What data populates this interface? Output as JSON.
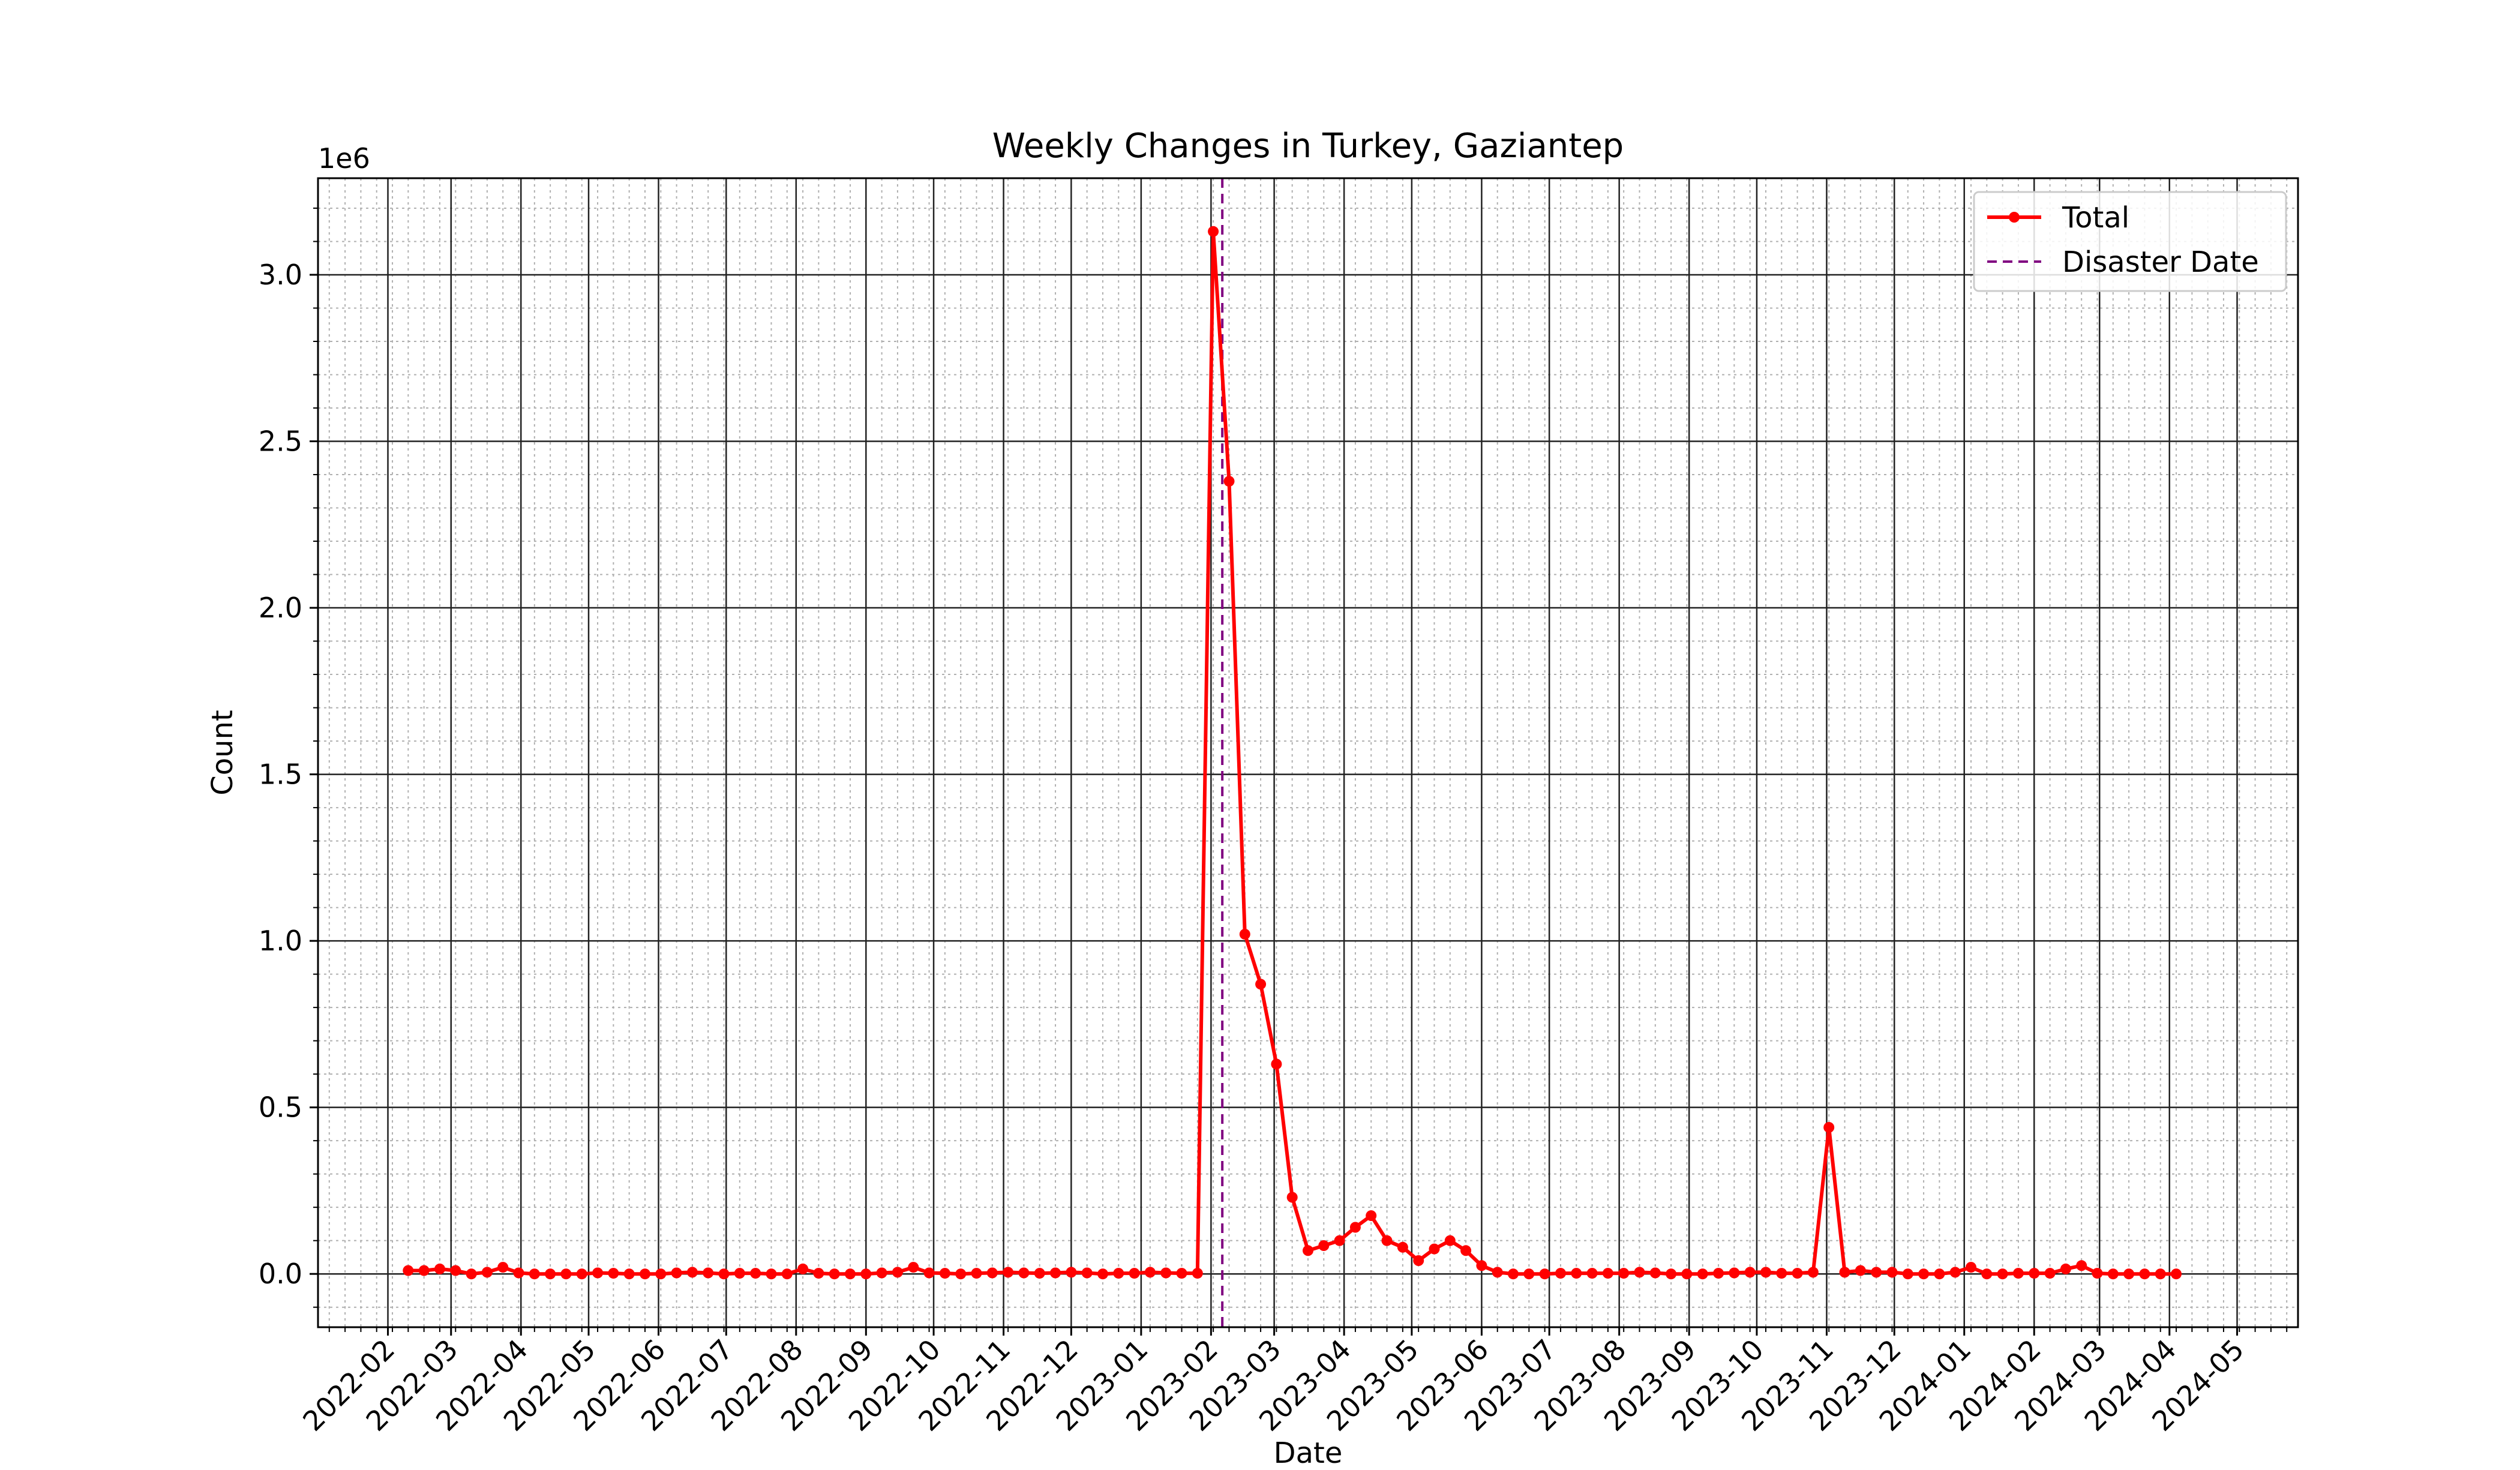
{
  "chart_data": {
    "type": "line",
    "title": "Weekly Changes in Turkey, Gaziantep",
    "xlabel": "Date",
    "ylabel": "Count",
    "y_exponent_label": "1e6",
    "xlim": [
      "2022-01-01",
      "2024-05-28"
    ],
    "ylim": [
      -0.16,
      3.29
    ],
    "y_scale_factor": 1000000,
    "grid": {
      "major": true,
      "minor": true
    },
    "legend_position": "top-right",
    "x_ticks": [
      "2022-02",
      "2022-03",
      "2022-04",
      "2022-05",
      "2022-06",
      "2022-07",
      "2022-08",
      "2022-09",
      "2022-10",
      "2022-11",
      "2022-12",
      "2023-01",
      "2023-02",
      "2023-03",
      "2023-04",
      "2023-05",
      "2023-06",
      "2023-07",
      "2023-08",
      "2023-09",
      "2023-10",
      "2023-11",
      "2023-12",
      "2024-01",
      "2024-02",
      "2024-03",
      "2024-04",
      "2024-05"
    ],
    "y_ticks": [
      0.0,
      0.5,
      1.0,
      1.5,
      2.0,
      2.5,
      3.0
    ],
    "y_tick_labels": [
      "0.0",
      "0.5",
      "1.0",
      "1.5",
      "2.0",
      "2.5",
      "3.0"
    ],
    "disaster_date": "2023-02-06",
    "series": [
      {
        "name": "Total",
        "color": "#ff0000",
        "start_date": "2022-02-10",
        "interval_days": 7,
        "values": [
          0.01,
          0.01,
          0.015,
          0.01,
          0.0,
          0.005,
          0.02,
          0.003,
          0.0,
          0.0,
          0.0,
          0.0,
          0.003,
          0.002,
          0.0,
          0.0,
          0.0,
          0.003,
          0.005,
          0.003,
          0.0,
          0.002,
          0.002,
          0.0,
          0.0,
          0.015,
          0.002,
          0.0,
          0.0,
          0.0,
          0.003,
          0.005,
          0.02,
          0.003,
          0.002,
          0.0,
          0.002,
          0.003,
          0.005,
          0.003,
          0.002,
          0.003,
          0.005,
          0.003,
          0.0,
          0.002,
          0.002,
          0.005,
          0.003,
          0.002,
          0.002,
          3.13,
          2.38,
          1.02,
          0.87,
          0.63,
          0.23,
          0.07,
          0.085,
          0.1,
          0.14,
          0.175,
          0.1,
          0.08,
          0.04,
          0.075,
          0.1,
          0.07,
          0.025,
          0.005,
          0.0,
          0.0,
          0.0,
          0.002,
          0.002,
          0.002,
          0.002,
          0.002,
          0.005,
          0.003,
          0.0,
          0.0,
          0.0,
          0.002,
          0.003,
          0.005,
          0.005,
          0.002,
          0.002,
          0.005,
          0.44,
          0.005,
          0.01,
          0.005,
          0.005,
          0.0,
          0.0,
          0.0,
          0.005,
          0.02,
          0.0,
          0.0,
          0.002,
          0.002,
          0.002,
          0.015,
          0.025,
          0.002,
          0.0,
          0.0,
          0.0,
          0.0,
          0.0
        ]
      },
      {
        "name": "Disaster Date",
        "color": "#800080",
        "style": "dashed"
      }
    ]
  }
}
